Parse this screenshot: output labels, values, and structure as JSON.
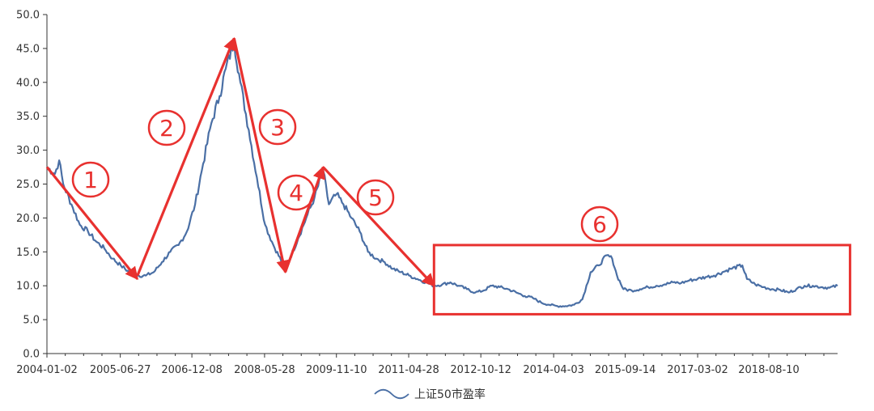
{
  "chart_data": {
    "type": "line",
    "title": "",
    "xlabel": "",
    "ylabel": "",
    "ylim": [
      0,
      50
    ],
    "ytick_labels": [
      "0.0",
      "5.0",
      "10.0",
      "15.0",
      "20.0",
      "25.0",
      "30.0",
      "35.0",
      "40.0",
      "45.0",
      "50.0"
    ],
    "yticks": [
      0,
      5,
      10,
      15,
      20,
      25,
      30,
      35,
      40,
      45,
      50
    ],
    "xlim": [
      "2004-01-02",
      "2019-12-31"
    ],
    "xtick_labels": [
      "2004-01-02",
      "2005-06-27",
      "2006-12-08",
      "2008-05-28",
      "2009-11-10",
      "2011-04-28",
      "2012-10-12",
      "2014-04-03",
      "2015-09-14",
      "2017-03-02",
      "2018-08-10"
    ],
    "grid": false,
    "legend": {
      "position": "bottom-center",
      "entries": [
        "上证50市盈率"
      ]
    },
    "series": [
      {
        "name": "上证50市盈率",
        "color": "#4a6fa5",
        "x": [
          "2004-01-02",
          "2004-03-01",
          "2004-04-01",
          "2004-05-01",
          "2004-07-01",
          "2004-09-01",
          "2004-11-01",
          "2005-01-01",
          "2005-03-01",
          "2005-05-01",
          "2005-07-01",
          "2005-09-01",
          "2005-11-01",
          "2006-01-01",
          "2006-03-01",
          "2006-05-01",
          "2006-07-01",
          "2006-09-01",
          "2006-11-01",
          "2007-01-01",
          "2007-03-01",
          "2007-05-01",
          "2007-07-01",
          "2007-08-15",
          "2007-10-16",
          "2007-12-01",
          "2008-02-01",
          "2008-04-01",
          "2008-06-01",
          "2008-08-01",
          "2008-10-28",
          "2008-12-01",
          "2009-02-01",
          "2009-04-01",
          "2009-06-01",
          "2009-08-04",
          "2009-09-15",
          "2009-11-10",
          "2010-01-01",
          "2010-03-01",
          "2010-05-01",
          "2010-07-01",
          "2010-09-01",
          "2010-11-01",
          "2011-01-01",
          "2011-03-01",
          "2011-05-01",
          "2011-07-01",
          "2011-09-01",
          "2011-11-01",
          "2012-01-01",
          "2012-03-01",
          "2012-05-01",
          "2012-07-01",
          "2012-09-01",
          "2012-11-01",
          "2013-01-01",
          "2013-03-01",
          "2013-05-01",
          "2013-07-01",
          "2013-09-01",
          "2013-11-01",
          "2014-01-01",
          "2014-03-01",
          "2014-05-01",
          "2014-07-01",
          "2014-09-01",
          "2014-11-01",
          "2015-01-01",
          "2015-03-01",
          "2015-05-01",
          "2015-06-10",
          "2015-07-15",
          "2015-09-01",
          "2015-11-01",
          "2016-01-01",
          "2016-03-01",
          "2016-05-01",
          "2016-07-01",
          "2016-09-01",
          "2016-11-01",
          "2017-01-01",
          "2017-03-01",
          "2017-05-01",
          "2017-07-01",
          "2017-09-01",
          "2017-11-01",
          "2018-01-26",
          "2018-03-01",
          "2018-05-01",
          "2018-07-01",
          "2018-09-01",
          "2018-11-01",
          "2019-01-03",
          "2019-03-01",
          "2019-05-01",
          "2019-07-01",
          "2019-09-01",
          "2019-11-01",
          "2019-12-31"
        ],
        "values": [
          27.5,
          26.5,
          28.5,
          25.0,
          22.0,
          19.0,
          18.0,
          16.5,
          15.5,
          14.0,
          13.0,
          12.0,
          11.5,
          11.5,
          12.0,
          13.5,
          15.0,
          16.0,
          18.0,
          22.0,
          28.0,
          34.0,
          38.0,
          42.0,
          46.0,
          40.0,
          33.0,
          26.0,
          19.0,
          16.0,
          12.5,
          14.0,
          17.0,
          20.0,
          23.0,
          27.0,
          22.0,
          23.5,
          22.0,
          20.0,
          18.0,
          15.0,
          14.0,
          13.5,
          12.5,
          12.0,
          11.5,
          11.0,
          10.5,
          10.0,
          10.2,
          10.5,
          10.0,
          9.5,
          9.0,
          9.3,
          10.0,
          9.8,
          9.5,
          9.0,
          8.5,
          8.2,
          7.5,
          7.2,
          7.0,
          7.0,
          7.2,
          8.0,
          12.0,
          13.0,
          14.5,
          14.0,
          11.5,
          9.5,
          9.3,
          9.5,
          9.8,
          10.0,
          10.2,
          10.5,
          10.4,
          10.8,
          11.0,
          11.3,
          11.5,
          12.0,
          12.5,
          13.0,
          11.0,
          10.2,
          9.8,
          9.5,
          9.4,
          9.0,
          9.5,
          10.0,
          10.0,
          9.8,
          9.7,
          10.0
        ]
      }
    ],
    "annotations": {
      "labels": [
        "1",
        "2",
        "3",
        "4",
        "5",
        "6"
      ],
      "arrows": [
        {
          "from": [
            "2004-01-02",
            27.5
          ],
          "to": [
            "2005-11-01",
            11.0
          ]
        },
        {
          "from": [
            "2005-11-01",
            11.5
          ],
          "to": [
            "2007-10-16",
            46.5
          ]
        },
        {
          "from": [
            "2007-10-16",
            46.5
          ],
          "to": [
            "2008-10-28",
            12.0
          ]
        },
        {
          "from": [
            "2008-10-28",
            12.0
          ],
          "to": [
            "2009-08-04",
            27.5
          ]
        },
        {
          "from": [
            "2009-08-04",
            27.5
          ],
          "to": [
            "2011-11-01",
            10.0
          ]
        }
      ],
      "box": {
        "x_range": [
          "2011-11-01",
          "2020-04-01"
        ],
        "y_range": [
          5.8,
          16.0
        ]
      }
    }
  }
}
